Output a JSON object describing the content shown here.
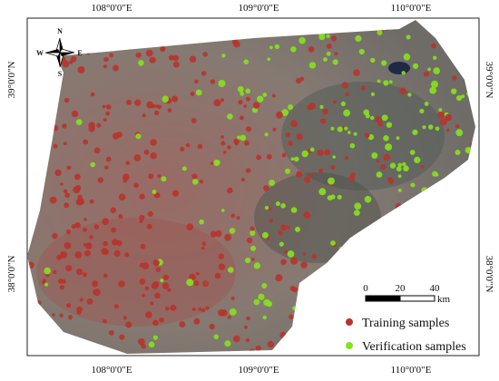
{
  "map": {
    "graticule": {
      "longitudes": [
        "108°0'0\"E",
        "109°0'0\"E",
        "110°0'0\"E"
      ],
      "latitudes": [
        "39°0'0\"N",
        "38°0'0\"N"
      ]
    },
    "compass": {
      "north": "N",
      "south": "S",
      "east": "E",
      "west": "W"
    },
    "scale_bar": {
      "ticks": [
        0,
        20,
        40
      ],
      "unit": "km"
    },
    "legend": [
      {
        "label": "Training samples",
        "color": "#b8332b"
      },
      {
        "label": "Verification samples",
        "color": "#86e21c"
      }
    ]
  }
}
